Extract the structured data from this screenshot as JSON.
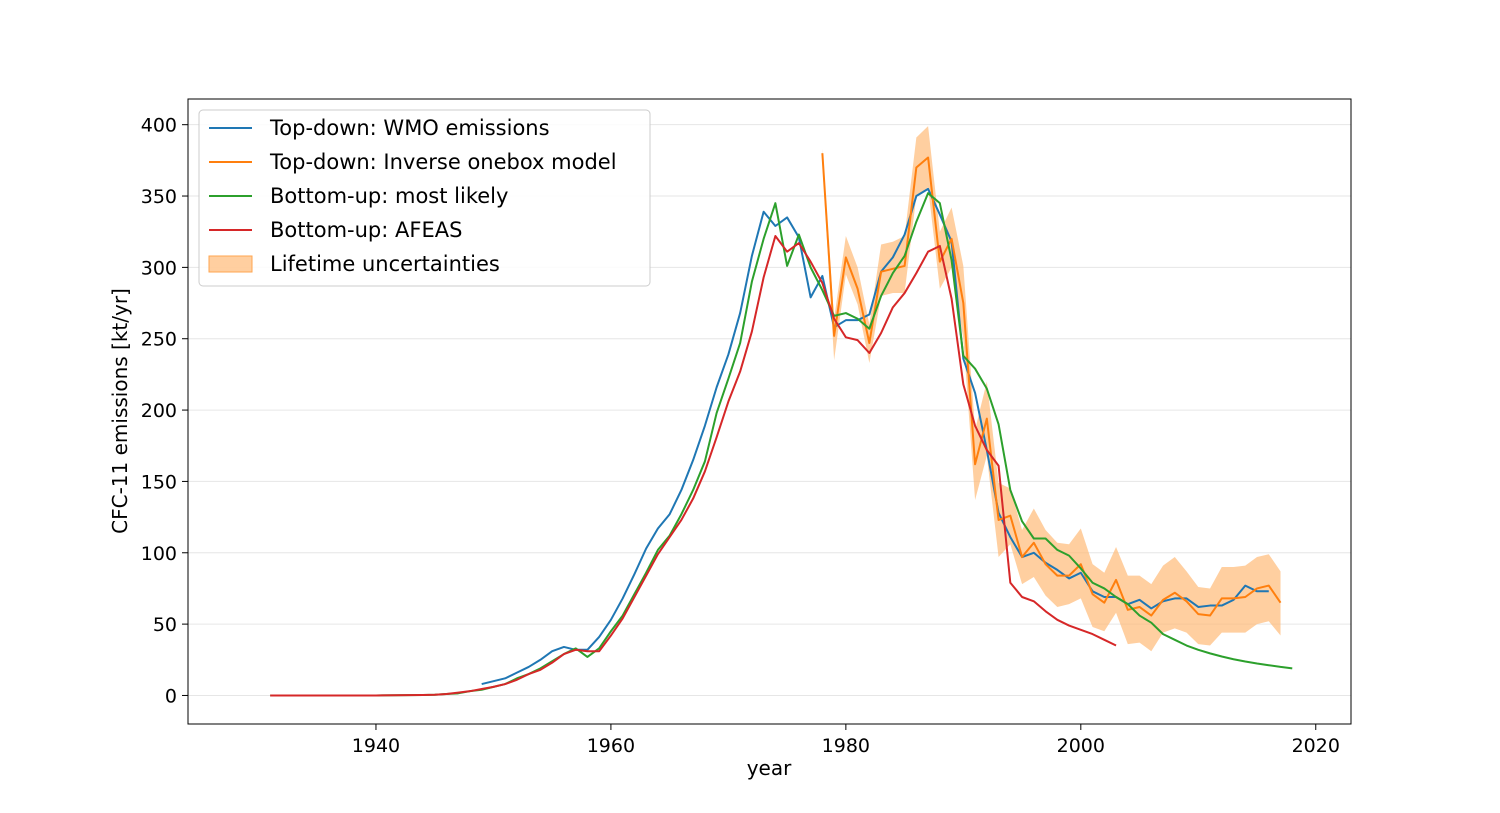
{
  "chart_data": {
    "type": "line",
    "xlabel": "year",
    "ylabel": "CFC-11 emissions [kt/yr]",
    "xlim": [
      1924,
      2023
    ],
    "ylim": [
      -20,
      418
    ],
    "x_ticks": [
      1940,
      1960,
      1980,
      2000,
      2020
    ],
    "y_ticks": [
      0,
      50,
      100,
      150,
      200,
      250,
      300,
      350,
      400
    ],
    "grid": "horizontal",
    "legend_position": "top-left",
    "series": [
      {
        "name": "Top-down: WMO emissions",
        "color": "#1f77b4",
        "points": [
          [
            1949,
            8
          ],
          [
            1951,
            12
          ],
          [
            1952,
            16
          ],
          [
            1953,
            20
          ],
          [
            1954,
            25
          ],
          [
            1955,
            31
          ],
          [
            1956,
            34
          ],
          [
            1957,
            32
          ],
          [
            1958,
            32
          ],
          [
            1959,
            41
          ],
          [
            1960,
            53
          ],
          [
            1961,
            68
          ],
          [
            1962,
            85
          ],
          [
            1963,
            103
          ],
          [
            1964,
            117
          ],
          [
            1965,
            127
          ],
          [
            1966,
            144
          ],
          [
            1967,
            165
          ],
          [
            1968,
            189
          ],
          [
            1969,
            216
          ],
          [
            1970,
            239
          ],
          [
            1971,
            268
          ],
          [
            1972,
            308
          ],
          [
            1973,
            339
          ],
          [
            1974,
            329
          ],
          [
            1975,
            335
          ],
          [
            1976,
            321
          ],
          [
            1977,
            279
          ],
          [
            1978,
            294
          ],
          [
            1979,
            258
          ],
          [
            1980,
            263
          ],
          [
            1981,
            263
          ],
          [
            1982,
            267
          ],
          [
            1983,
            297
          ],
          [
            1984,
            307
          ],
          [
            1985,
            323
          ],
          [
            1986,
            350
          ],
          [
            1987,
            355
          ],
          [
            1988,
            337
          ],
          [
            1989,
            318
          ],
          [
            1990,
            236
          ],
          [
            1991,
            212
          ],
          [
            1992,
            172
          ],
          [
            1993,
            128
          ],
          [
            1994,
            111
          ],
          [
            1995,
            97
          ],
          [
            1996,
            100
          ],
          [
            1997,
            93
          ],
          [
            1998,
            88
          ],
          [
            1999,
            82
          ],
          [
            2000,
            86
          ],
          [
            2001,
            73
          ],
          [
            2002,
            69
          ],
          [
            2003,
            69
          ],
          [
            2004,
            64
          ],
          [
            2005,
            67
          ],
          [
            2006,
            61
          ],
          [
            2007,
            66
          ],
          [
            2008,
            68
          ],
          [
            2009,
            68
          ],
          [
            2010,
            62
          ],
          [
            2011,
            63
          ],
          [
            2012,
            63
          ],
          [
            2013,
            67
          ],
          [
            2014,
            77
          ],
          [
            2015,
            73
          ],
          [
            2016,
            73
          ]
        ]
      },
      {
        "name": "Top-down: Inverse onebox model",
        "color": "#ff7f0e",
        "points": [
          [
            1978,
            380
          ],
          [
            1979,
            252
          ],
          [
            1980,
            307
          ],
          [
            1981,
            285
          ],
          [
            1982,
            247
          ],
          [
            1983,
            297
          ],
          [
            1984,
            299
          ],
          [
            1985,
            301
          ],
          [
            1986,
            370
          ],
          [
            1987,
            377
          ],
          [
            1988,
            304
          ],
          [
            1989,
            320
          ],
          [
            1990,
            275
          ],
          [
            1991,
            162
          ],
          [
            1992,
            194
          ],
          [
            1993,
            123
          ],
          [
            1994,
            126
          ],
          [
            1995,
            97
          ],
          [
            1996,
            107
          ],
          [
            1997,
            92
          ],
          [
            1998,
            84
          ],
          [
            1999,
            84
          ],
          [
            2000,
            92
          ],
          [
            2001,
            71
          ],
          [
            2002,
            65
          ],
          [
            2003,
            81
          ],
          [
            2004,
            60
          ],
          [
            2005,
            62
          ],
          [
            2006,
            56
          ],
          [
            2007,
            67
          ],
          [
            2008,
            72
          ],
          [
            2009,
            66
          ],
          [
            2010,
            57
          ],
          [
            2011,
            56
          ],
          [
            2012,
            68
          ],
          [
            2013,
            68
          ],
          [
            2014,
            69
          ],
          [
            2015,
            75
          ],
          [
            2016,
            77
          ],
          [
            2017,
            65
          ]
        ]
      },
      {
        "name": "Bottom-up: most likely",
        "color": "#2ca02c",
        "points": [
          [
            1931,
            0
          ],
          [
            1936,
            0
          ],
          [
            1940,
            0
          ],
          [
            1944,
            0.3
          ],
          [
            1945,
            0.5
          ],
          [
            1946,
            1
          ],
          [
            1947,
            1.5
          ],
          [
            1948,
            3
          ],
          [
            1949,
            4
          ],
          [
            1950,
            6
          ],
          [
            1951,
            8
          ],
          [
            1952,
            12
          ],
          [
            1953,
            15
          ],
          [
            1954,
            19
          ],
          [
            1955,
            24
          ],
          [
            1956,
            29
          ],
          [
            1957,
            33
          ],
          [
            1958,
            27
          ],
          [
            1959,
            33
          ],
          [
            1960,
            45
          ],
          [
            1961,
            56
          ],
          [
            1962,
            71
          ],
          [
            1963,
            86
          ],
          [
            1964,
            102
          ],
          [
            1965,
            112
          ],
          [
            1966,
            127
          ],
          [
            1967,
            144
          ],
          [
            1968,
            164
          ],
          [
            1969,
            198
          ],
          [
            1970,
            222
          ],
          [
            1971,
            247
          ],
          [
            1972,
            290
          ],
          [
            1973,
            320
          ],
          [
            1974,
            345
          ],
          [
            1975,
            301
          ],
          [
            1976,
            323
          ],
          [
            1977,
            300
          ],
          [
            1978,
            284
          ],
          [
            1979,
            266
          ],
          [
            1980,
            268
          ],
          [
            1981,
            264
          ],
          [
            1982,
            257
          ],
          [
            1983,
            280
          ],
          [
            1984,
            296
          ],
          [
            1985,
            308
          ],
          [
            1986,
            332
          ],
          [
            1987,
            352
          ],
          [
            1988,
            345
          ],
          [
            1989,
            305
          ],
          [
            1990,
            238
          ],
          [
            1991,
            229
          ],
          [
            1992,
            215
          ],
          [
            1993,
            190
          ],
          [
            1994,
            144
          ],
          [
            1995,
            122
          ],
          [
            1996,
            110
          ],
          [
            1997,
            110
          ],
          [
            1998,
            102
          ],
          [
            1999,
            98
          ],
          [
            2000,
            89
          ],
          [
            2001,
            79
          ],
          [
            2002,
            75
          ],
          [
            2003,
            69
          ],
          [
            2004,
            64
          ],
          [
            2005,
            56
          ],
          [
            2006,
            51
          ],
          [
            2007,
            43
          ],
          [
            2008,
            39
          ],
          [
            2009,
            35
          ],
          [
            2010,
            32
          ],
          [
            2011,
            29.5
          ],
          [
            2012,
            27.3
          ],
          [
            2013,
            25.4
          ],
          [
            2014,
            23.8
          ],
          [
            2015,
            22.4
          ],
          [
            2016,
            21.2
          ],
          [
            2017,
            20
          ],
          [
            2018,
            19
          ]
        ]
      },
      {
        "name": "Bottom-up: AFEAS",
        "color": "#d62728",
        "points": [
          [
            1931,
            0
          ],
          [
            1936,
            0
          ],
          [
            1940,
            0
          ],
          [
            1944,
            0.3
          ],
          [
            1945,
            0.5
          ],
          [
            1946,
            1
          ],
          [
            1947,
            2
          ],
          [
            1948,
            3
          ],
          [
            1949,
            4.5
          ],
          [
            1950,
            6
          ],
          [
            1951,
            8
          ],
          [
            1952,
            11
          ],
          [
            1953,
            15
          ],
          [
            1954,
            18
          ],
          [
            1955,
            23
          ],
          [
            1956,
            29
          ],
          [
            1957,
            32
          ],
          [
            1958,
            31
          ],
          [
            1959,
            31
          ],
          [
            1960,
            42
          ],
          [
            1961,
            54
          ],
          [
            1962,
            69
          ],
          [
            1963,
            84
          ],
          [
            1964,
            99
          ],
          [
            1965,
            111
          ],
          [
            1966,
            123
          ],
          [
            1967,
            138
          ],
          [
            1968,
            157
          ],
          [
            1969,
            181
          ],
          [
            1970,
            206
          ],
          [
            1971,
            227
          ],
          [
            1972,
            255
          ],
          [
            1973,
            293
          ],
          [
            1974,
            322
          ],
          [
            1975,
            311
          ],
          [
            1976,
            317
          ],
          [
            1977,
            304
          ],
          [
            1978,
            289
          ],
          [
            1979,
            264
          ],
          [
            1980,
            251
          ],
          [
            1981,
            249
          ],
          [
            1982,
            240
          ],
          [
            1983,
            254
          ],
          [
            1984,
            272
          ],
          [
            1985,
            282
          ],
          [
            1986,
            296
          ],
          [
            1987,
            311
          ],
          [
            1988,
            315
          ],
          [
            1989,
            278
          ],
          [
            1990,
            218
          ],
          [
            1991,
            189
          ],
          [
            1992,
            172
          ],
          [
            1993,
            161
          ],
          [
            1994,
            79
          ],
          [
            1995,
            69
          ],
          [
            1996,
            66
          ],
          [
            1997,
            59
          ],
          [
            1998,
            53
          ],
          [
            1999,
            49
          ],
          [
            2000,
            46
          ],
          [
            2001,
            43
          ],
          [
            2002,
            39
          ],
          [
            2003,
            35
          ]
        ]
      }
    ],
    "band": {
      "name": "Lifetime uncertainties",
      "color": "#ffbb78",
      "points": [
        [
          1978,
          383,
          373
        ],
        [
          1979,
          264,
          235
        ],
        [
          1980,
          322,
          295
        ],
        [
          1981,
          300,
          274
        ],
        [
          1982,
          260,
          233
        ],
        [
          1983,
          316,
          280
        ],
        [
          1984,
          318,
          282
        ],
        [
          1985,
          322,
          282
        ],
        [
          1986,
          391,
          350
        ],
        [
          1987,
          399,
          356
        ],
        [
          1988,
          325,
          285
        ],
        [
          1989,
          342,
          300
        ],
        [
          1990,
          301,
          250
        ],
        [
          1991,
          186,
          137
        ],
        [
          1992,
          220,
          168
        ],
        [
          1993,
          149,
          97
        ],
        [
          1994,
          145,
          106
        ],
        [
          1995,
          116,
          78
        ],
        [
          1996,
          131,
          83
        ],
        [
          1997,
          116,
          70
        ],
        [
          1998,
          107,
          62
        ],
        [
          1999,
          106,
          64
        ],
        [
          2000,
          117,
          68
        ],
        [
          2001,
          92,
          48
        ],
        [
          2002,
          86,
          45
        ],
        [
          2003,
          104,
          58
        ],
        [
          2004,
          84,
          36
        ],
        [
          2005,
          84,
          37
        ],
        [
          2006,
          78,
          31
        ],
        [
          2007,
          91,
          44
        ],
        [
          2008,
          97,
          47
        ],
        [
          2009,
          87,
          44
        ],
        [
          2010,
          76,
          36
        ],
        [
          2011,
          75,
          35
        ],
        [
          2012,
          90,
          44
        ],
        [
          2013,
          90,
          44
        ],
        [
          2014,
          91,
          44
        ],
        [
          2015,
          97,
          50
        ],
        [
          2016,
          99,
          52
        ],
        [
          2017,
          87,
          42
        ]
      ]
    }
  }
}
